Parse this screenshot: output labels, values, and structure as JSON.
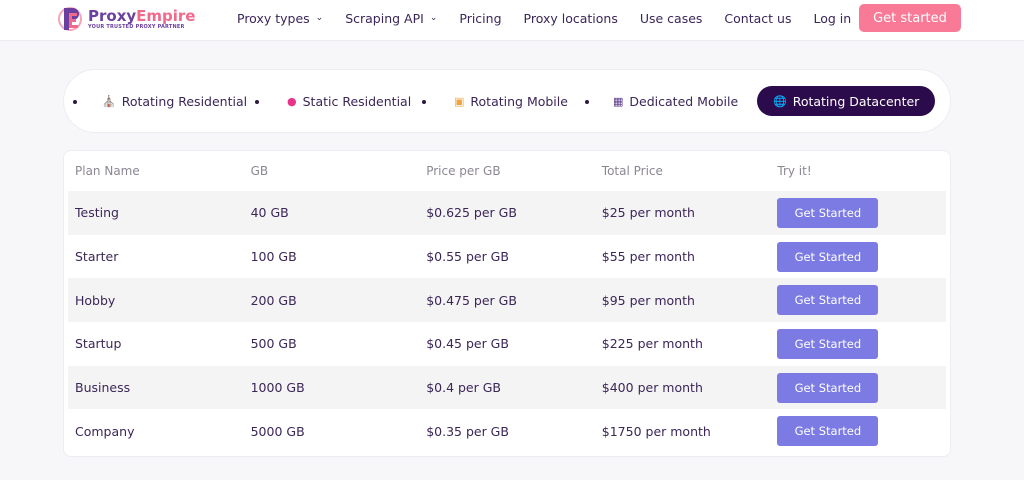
{
  "header": {
    "logo": {
      "name_a": "Proxy",
      "name_b": "Empire",
      "tagline": "YOUR TRUSTED PROXY PARTNER"
    },
    "nav": [
      {
        "label": "Proxy types",
        "dropdown": true
      },
      {
        "label": "Scraping API",
        "dropdown": true
      },
      {
        "label": "Pricing"
      },
      {
        "label": "Proxy locations"
      },
      {
        "label": "Use cases"
      },
      {
        "label": "Contact us"
      },
      {
        "label": "Log in"
      }
    ],
    "cta": "Get started"
  },
  "tabs": [
    {
      "label": "Rotating Residential",
      "icon": "house-icon"
    },
    {
      "label": "Static Residential",
      "icon": "pin-icon"
    },
    {
      "label": "Rotating Mobile",
      "icon": "mobile-icon"
    },
    {
      "label": "Dedicated Mobile",
      "icon": "mobile-grid-icon"
    },
    {
      "label": "Rotating Datacenter",
      "icon": "globe-icon",
      "active": true
    }
  ],
  "table": {
    "headers": [
      "Plan Name",
      "GB",
      "Price per GB",
      "Total Price",
      "Try it!"
    ],
    "rows": [
      [
        "Testing",
        "40 GB",
        "$0.625 per GB",
        "$25 per month"
      ],
      [
        "Starter",
        "100 GB",
        "$0.55 per GB",
        "$55 per month"
      ],
      [
        "Hobby",
        "200 GB",
        "$0.475 per GB",
        "$95 per month"
      ],
      [
        "Startup",
        "500 GB",
        "$0.45 per GB",
        "$225 per month"
      ],
      [
        "Business",
        "1000 GB",
        "$0.4 per GB",
        "$400 per month"
      ],
      [
        "Company",
        "5000 GB",
        "$0.35 per GB",
        "$1750 per month"
      ]
    ],
    "button_label": "Get Started"
  },
  "colors": {
    "accent": "#f97a96",
    "button": "#7b7be3",
    "active_tab": "#2c0b4d",
    "text": "#3b2658"
  }
}
